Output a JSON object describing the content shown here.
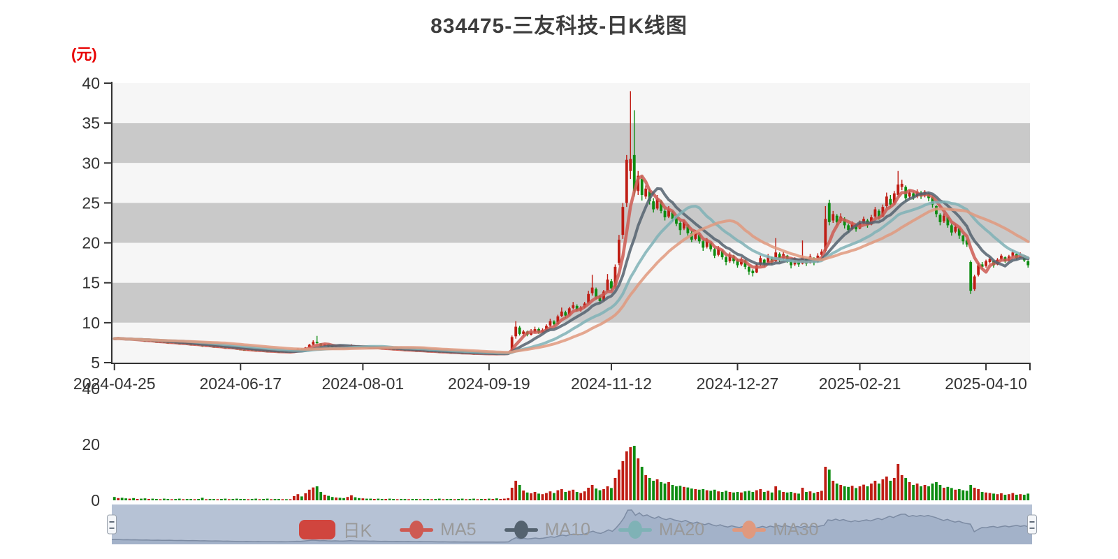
{
  "title": "834475-三友科技-日K线图",
  "y_axis": {
    "unit": "(元)",
    "ticks": [
      40,
      35,
      30,
      25,
      20,
      15,
      10,
      5
    ]
  },
  "volume_axis": {
    "ticks": [
      40,
      20,
      0
    ]
  },
  "x_axis": {
    "labels": [
      "2024-04-25",
      "2024-06-17",
      "2024-08-01",
      "2024-09-19",
      "2024-11-12",
      "2024-12-27",
      "2025-02-21",
      "2025-04-10"
    ],
    "tick_indices": [
      0,
      33,
      65,
      98,
      130,
      163,
      195,
      228
    ]
  },
  "legend": {
    "items": [
      {
        "name": "kline",
        "label": "日K",
        "type": "bar",
        "color": "#d0453e"
      },
      {
        "name": "ma5",
        "label": "MA5",
        "type": "line",
        "color": "#ce5a52"
      },
      {
        "name": "ma10",
        "label": "MA10",
        "type": "line",
        "color": "#54626f"
      },
      {
        "name": "ma20",
        "label": "MA20",
        "type": "line",
        "color": "#7fb2b6"
      },
      {
        "name": "ma30",
        "label": "MA30",
        "type": "line",
        "color": "#e0997e"
      }
    ]
  },
  "colors": {
    "up": "#bf1d14",
    "down": "#0d8c11",
    "stripe_light": "#f6f6f6",
    "stripe_dark": "#c9c9c9",
    "axis": "#333333",
    "label": "#333333",
    "legend_text": "#999999",
    "unit_label": "#e80000",
    "title_text": "#3d3d3d",
    "nav_bg": "#b6c2d5",
    "nav_area": "#a3b2c9",
    "nav_line": "#7c8ba3",
    "nav_handle_fill": "#f4f6f9",
    "nav_handle_stroke": "#98a0ab",
    "nav_handle_grip": "#55606e"
  },
  "chart_data": {
    "type": "candlestick",
    "title": "834475-三友科技-日K线图",
    "ylabel": "(元)",
    "price_range": [
      5,
      40
    ],
    "volume_range": [
      0,
      40
    ],
    "grid": "horizontal-bands",
    "legend_position": "bottom-center",
    "moving_average_windows": [
      5,
      10,
      20,
      30
    ],
    "ohlc_format": [
      "open",
      "close",
      "low",
      "high"
    ],
    "candles": [
      [
        8.1,
        8.0,
        7.94,
        8.16
      ],
      [
        8.0,
        8.06
      ],
      [
        8.05,
        7.95
      ],
      [
        7.95,
        7.86
      ],
      [
        7.86,
        7.93
      ],
      [
        7.91,
        7.81
      ],
      [
        7.81,
        7.87
      ],
      [
        7.85,
        7.75
      ],
      [
        7.74,
        7.66
      ],
      [
        7.67,
        7.73
      ],
      [
        7.72,
        7.62
      ],
      [
        7.62,
        7.55
      ],
      [
        7.56,
        7.62
      ],
      [
        7.6,
        7.5
      ],
      [
        7.5,
        7.44
      ],
      [
        7.45,
        7.52
      ],
      [
        7.5,
        7.4
      ],
      [
        7.4,
        7.32
      ],
      [
        7.33,
        7.4
      ],
      [
        7.38,
        7.28
      ],
      [
        7.28,
        7.2
      ],
      [
        7.21,
        7.28
      ],
      [
        7.26,
        7.16
      ],
      [
        7.15,
        7.05,
        6.98,
        7.18
      ],
      [
        7.06,
        7.12
      ],
      [
        7.1,
        7.0
      ],
      [
        7.0,
        6.92
      ],
      [
        6.93,
        7.0
      ],
      [
        6.98,
        6.88
      ],
      [
        6.88,
        6.8,
        6.74,
        6.92
      ],
      [
        6.81,
        6.87
      ],
      [
        6.85,
        6.75
      ],
      [
        6.74,
        6.66
      ],
      [
        6.66,
        6.6
      ],
      [
        6.6,
        6.55
      ],
      [
        6.56,
        6.62
      ],
      [
        6.6,
        6.52
      ],
      [
        6.52,
        6.45,
        6.4,
        6.55
      ],
      [
        6.46,
        6.52
      ],
      [
        6.5,
        6.42
      ],
      [
        6.42,
        6.36,
        6.3,
        6.45
      ],
      [
        6.37,
        6.44
      ],
      [
        6.42,
        6.35
      ],
      [
        6.35,
        6.3,
        6.25,
        6.38
      ],
      [
        6.31,
        6.38
      ],
      [
        6.36,
        6.3
      ],
      [
        6.31,
        6.36
      ],
      [
        6.37,
        6.55,
        6.35,
        6.6
      ],
      [
        6.56,
        6.75,
        6.52,
        6.8
      ],
      [
        6.73,
        6.65
      ],
      [
        6.66,
        6.9,
        6.62,
        6.95
      ],
      [
        6.92,
        7.25,
        6.9,
        7.35
      ],
      [
        7.25,
        7.6,
        7.2,
        7.8
      ],
      [
        7.6,
        7.45,
        7.35,
        8.35
      ],
      [
        7.4,
        7.1,
        7.0,
        7.45
      ],
      [
        7.12,
        7.3
      ],
      [
        7.28,
        7.05,
        6.98,
        7.32
      ],
      [
        7.05,
        6.95
      ],
      [
        6.95,
        7.05
      ],
      [
        7.04,
        6.92
      ],
      [
        6.92,
        6.85
      ],
      [
        6.86,
        7.0,
        6.84,
        7.06
      ],
      [
        7.0,
        7.15,
        6.98,
        7.3
      ],
      [
        7.12,
        7.0
      ],
      [
        7.0,
        6.9
      ],
      [
        6.91,
        6.97
      ],
      [
        6.95,
        6.88
      ],
      [
        6.88,
        6.8
      ],
      [
        6.81,
        6.86
      ],
      [
        6.85,
        6.77
      ],
      [
        6.77,
        6.7
      ],
      [
        6.71,
        6.76
      ],
      [
        6.75,
        6.68
      ],
      [
        6.67,
        6.6
      ],
      [
        6.61,
        6.66
      ],
      [
        6.65,
        6.58
      ],
      [
        6.58,
        6.52
      ],
      [
        6.53,
        6.58
      ],
      [
        6.56,
        6.5
      ],
      [
        6.5,
        6.44
      ],
      [
        6.45,
        6.5
      ],
      [
        6.48,
        6.42
      ],
      [
        6.42,
        6.36
      ],
      [
        6.37,
        6.42
      ],
      [
        6.4,
        6.34
      ],
      [
        6.34,
        6.28,
        6.22,
        6.38
      ],
      [
        6.29,
        6.34
      ],
      [
        6.33,
        6.27
      ],
      [
        6.27,
        6.22
      ],
      [
        6.23,
        6.28
      ],
      [
        6.26,
        6.2
      ],
      [
        6.2,
        6.15,
        6.1,
        6.24
      ],
      [
        6.16,
        6.21
      ],
      [
        6.2,
        6.14
      ],
      [
        6.14,
        6.1,
        6.04,
        6.18
      ],
      [
        6.11,
        6.16
      ],
      [
        6.15,
        6.1
      ],
      [
        6.1,
        6.15
      ],
      [
        6.14,
        6.08
      ],
      [
        6.08,
        6.13
      ],
      [
        6.12,
        6.06,
        6.0,
        6.15
      ],
      [
        6.07,
        6.12
      ],
      [
        6.11,
        6.16
      ],
      [
        6.15,
        6.24,
        6.12,
        6.3
      ],
      [
        6.3,
        8.2,
        6.25,
        8.4
      ],
      [
        8.3,
        9.5,
        8.0,
        10.2
      ],
      [
        9.4,
        8.6,
        8.4,
        9.6
      ],
      [
        8.6,
        8.9,
        8.3,
        9.1
      ],
      [
        8.9,
        8.5,
        8.3,
        9.0
      ],
      [
        8.5,
        8.8,
        8.4,
        9.2
      ],
      [
        8.85,
        9.2,
        8.7,
        9.5
      ],
      [
        9.2,
        8.8,
        8.6,
        9.4
      ],
      [
        8.85,
        9.1,
        8.7,
        9.3
      ],
      [
        9.1,
        9.6,
        9.0,
        9.8
      ],
      [
        9.65,
        10.2,
        9.5,
        10.5
      ],
      [
        10.15,
        9.8,
        9.6,
        10.3
      ],
      [
        9.85,
        10.8,
        9.8,
        11.0
      ],
      [
        10.85,
        11.4,
        10.7,
        11.9
      ],
      [
        11.3,
        10.9,
        10.6,
        11.5
      ],
      [
        11.0,
        11.8,
        10.9,
        12.0
      ],
      [
        11.85,
        12.2,
        11.7,
        12.6
      ],
      [
        12.1,
        11.6,
        11.4,
        12.3
      ],
      [
        11.65,
        11.9,
        11.4,
        12.1
      ],
      [
        11.95,
        12.4,
        11.8,
        12.6
      ],
      [
        12.5,
        13.6,
        12.4,
        14.0
      ],
      [
        13.7,
        14.4,
        13.4,
        16.0
      ],
      [
        14.2,
        13.2,
        12.9,
        14.4
      ],
      [
        13.3,
        12.7,
        12.4,
        13.5
      ],
      [
        12.8,
        13.9,
        12.7,
        14.1
      ],
      [
        14.0,
        15.4,
        13.9,
        16.1
      ],
      [
        15.2,
        14.3,
        14.0,
        15.5
      ],
      [
        14.5,
        17.0,
        14.3,
        17.3
      ],
      [
        17.5,
        20.4,
        17.2,
        21.0
      ],
      [
        21.0,
        24.5,
        20.5,
        25.0
      ],
      [
        25.0,
        30.4,
        24.5,
        31.0
      ],
      [
        29.0,
        30.5,
        28.0,
        39.0
      ],
      [
        31.0,
        26.5,
        25.8,
        36.6
      ],
      [
        26.5,
        28.4,
        26.0,
        29.0
      ],
      [
        28.0,
        26.0,
        25.3,
        28.4
      ],
      [
        25.8,
        26.8,
        25.5,
        27.2
      ],
      [
        26.5,
        25.2,
        24.8,
        26.8
      ],
      [
        25.2,
        24.2,
        23.8,
        25.6
      ],
      [
        24.3,
        25.5,
        24.1,
        26.0
      ],
      [
        25.2,
        24.0,
        23.7,
        25.4
      ],
      [
        24.0,
        23.2,
        22.8,
        24.3
      ],
      [
        23.3,
        24.2,
        23.1,
        24.6
      ],
      [
        23.8,
        23.0,
        22.7,
        24.0
      ],
      [
        23.2,
        22.4,
        22.1,
        23.4
      ],
      [
        22.5,
        21.6,
        21.0,
        22.7
      ],
      [
        21.8,
        22.6,
        21.6,
        22.9
      ],
      [
        22.3,
        21.2,
        20.9,
        22.4
      ],
      [
        21.2,
        20.4,
        20.1,
        21.5
      ],
      [
        20.5,
        21.3,
        20.3,
        21.6
      ],
      [
        21.0,
        20.2,
        19.9,
        21.1
      ],
      [
        20.2,
        19.4,
        19.0,
        20.4
      ],
      [
        19.5,
        20.3,
        19.3,
        20.6
      ],
      [
        20.0,
        19.2,
        18.9,
        20.1
      ],
      [
        19.2,
        18.4,
        18.1,
        19.4
      ],
      [
        18.5,
        19.3,
        18.3,
        19.6
      ],
      [
        19.0,
        18.2,
        17.9,
        19.1
      ],
      [
        18.2,
        17.6,
        17.2,
        18.4
      ],
      [
        17.7,
        18.5,
        17.5,
        18.8
      ],
      [
        18.3,
        17.7,
        17.4,
        18.5
      ],
      [
        17.8,
        17.2,
        16.9,
        18.0
      ],
      [
        17.3,
        18.0,
        17.1,
        18.2
      ],
      [
        17.8,
        17.0,
        16.7,
        17.9
      ],
      [
        17.0,
        16.4,
        16.0,
        17.1
      ],
      [
        16.5,
        16.2,
        15.8,
        16.7
      ],
      [
        16.3,
        17.2,
        16.2,
        17.4
      ],
      [
        17.3,
        18.1,
        17.1,
        18.4
      ],
      [
        17.9,
        17.3,
        17.0,
        18.0
      ],
      [
        17.4,
        18.3,
        17.3,
        18.6
      ],
      [
        18.2,
        17.6,
        17.3,
        18.3
      ],
      [
        17.7,
        18.8,
        17.6,
        20.6
      ],
      [
        18.6,
        17.9,
        17.6,
        18.8
      ],
      [
        18.0,
        18.6,
        17.8,
        18.9
      ],
      [
        18.4,
        17.8,
        17.5,
        18.5
      ],
      [
        17.8,
        17.2,
        16.8,
        17.9
      ],
      [
        17.3,
        18.0,
        17.1,
        18.2
      ],
      [
        17.9,
        17.3,
        17.0,
        18.0
      ],
      [
        17.4,
        18.2,
        17.3,
        20.3
      ],
      [
        18.0,
        17.4,
        17.1,
        18.1
      ],
      [
        17.5,
        18.3,
        17.4,
        18.6
      ],
      [
        18.1,
        17.5,
        17.2,
        18.2
      ],
      [
        17.6,
        18.4,
        17.5,
        18.7
      ],
      [
        18.5,
        18.9,
        18.3,
        19.2
      ],
      [
        19.0,
        23.0,
        18.8,
        24.6
      ],
      [
        25.0,
        22.6,
        22.2,
        25.4
      ],
      [
        22.8,
        23.6,
        22.5,
        24.0
      ],
      [
        23.4,
        22.6,
        22.2,
        23.6
      ],
      [
        22.7,
        23.3,
        22.5,
        23.7
      ],
      [
        23.0,
        22.2,
        21.8,
        23.2
      ],
      [
        22.2,
        21.6,
        21.3,
        22.4
      ],
      [
        21.7,
        22.4,
        21.6,
        22.7
      ],
      [
        22.2,
        21.7,
        21.4,
        22.3
      ],
      [
        21.8,
        22.5,
        21.7,
        22.8
      ],
      [
        22.5,
        23.0,
        22.3,
        23.3
      ],
      [
        22.8,
        22.2,
        21.9,
        23.0
      ],
      [
        22.3,
        23.2,
        22.2,
        23.5
      ],
      [
        23.3,
        24.2,
        23.1,
        24.5
      ],
      [
        24.0,
        23.2,
        22.9,
        24.2
      ],
      [
        23.3,
        24.5,
        23.2,
        24.8
      ],
      [
        24.6,
        25.8,
        24.4,
        26.3
      ],
      [
        25.5,
        24.8,
        24.5,
        26.0
      ],
      [
        25.0,
        26.2,
        24.8,
        26.5
      ],
      [
        26.0,
        27.3,
        25.8,
        29.0
      ],
      [
        27.0,
        27.4,
        26.6,
        27.9
      ],
      [
        27.0,
        25.6,
        25.2,
        27.2
      ],
      [
        25.8,
        26.3,
        25.5,
        26.6
      ],
      [
        26.2,
        25.7,
        25.4,
        26.4
      ],
      [
        25.8,
        26.4,
        25.6,
        26.7
      ],
      [
        26.3,
        25.8,
        25.5,
        26.5
      ],
      [
        25.9,
        26.4,
        25.7,
        26.6
      ],
      [
        26.2,
        25.6,
        25.2,
        26.3
      ],
      [
        25.7,
        24.8,
        24.4,
        25.8
      ],
      [
        24.6,
        23.6,
        23.2,
        24.7
      ],
      [
        23.5,
        22.6,
        22.2,
        23.7
      ],
      [
        22.7,
        23.4,
        22.5,
        23.7
      ],
      [
        23.2,
        22.2,
        21.9,
        23.3
      ],
      [
        22.2,
        21.3,
        20.9,
        22.4
      ],
      [
        21.4,
        22.0,
        21.2,
        22.3
      ],
      [
        21.8,
        20.9,
        20.5,
        21.9
      ],
      [
        20.9,
        20.2,
        19.8,
        21.0
      ],
      [
        20.3,
        19.8,
        19.5,
        20.5
      ],
      [
        17.6,
        14.0,
        13.6,
        17.8
      ],
      [
        14.2,
        15.8,
        14.0,
        16.0
      ],
      [
        16.0,
        17.2,
        15.8,
        17.5
      ],
      [
        17.3,
        17.0,
        16.7,
        17.6
      ],
      [
        17.1,
        17.7,
        16.9,
        17.9
      ],
      [
        17.6,
        18.0,
        17.4,
        18.2
      ],
      [
        17.7,
        17.2,
        16.9,
        17.8
      ],
      [
        17.3,
        17.9,
        17.2,
        18.1
      ],
      [
        18.0,
        18.4,
        17.8,
        18.6
      ],
      [
        18.2,
        17.7,
        17.5,
        18.3
      ],
      [
        17.8,
        18.3,
        17.7,
        18.5
      ],
      [
        18.4,
        18.8,
        18.2,
        19.1
      ],
      [
        18.6,
        18.1,
        17.9,
        18.7
      ],
      [
        18.2,
        18.6,
        18.1,
        18.8
      ],
      [
        18.4,
        17.8,
        17.6,
        18.5
      ],
      [
        17.7,
        17.2,
        16.9,
        17.8
      ]
    ],
    "volumes": [
      1.2,
      0.8,
      0.9,
      0.7,
      0.6,
      0.8,
      0.5,
      0.6,
      0.7,
      0.5,
      0.6,
      0.5,
      0.4,
      0.6,
      0.5,
      0.4,
      0.5,
      0.6,
      0.4,
      0.5,
      0.5,
      0.4,
      0.5,
      0.9,
      0.4,
      0.5,
      0.5,
      0.4,
      0.5,
      0.6,
      0.4,
      0.5,
      0.6,
      0.5,
      0.5,
      0.4,
      0.5,
      0.6,
      0.4,
      0.5,
      0.6,
      0.4,
      0.5,
      0.5,
      0.4,
      0.4,
      0.4,
      1.5,
      2.2,
      1.4,
      2.5,
      3.8,
      4.6,
      5.0,
      3.0,
      2.0,
      1.6,
      1.2,
      1.0,
      0.9,
      0.8,
      1.2,
      1.8,
      1.1,
      0.8,
      0.7,
      0.6,
      0.6,
      0.5,
      0.6,
      0.5,
      0.5,
      0.6,
      0.5,
      0.4,
      0.5,
      0.5,
      0.4,
      0.5,
      0.5,
      0.4,
      0.5,
      0.5,
      0.4,
      0.5,
      0.6,
      0.4,
      0.5,
      0.5,
      0.4,
      0.5,
      0.6,
      0.4,
      0.5,
      0.6,
      0.4,
      0.5,
      0.5,
      0.6,
      0.5,
      0.7,
      0.5,
      0.6,
      0.8,
      4.5,
      7.0,
      5.5,
      3.5,
      2.8,
      2.5,
      3.0,
      2.4,
      2.2,
      2.6,
      3.2,
      2.6,
      3.6,
      4.0,
      3.0,
      3.4,
      3.8,
      3.0,
      2.6,
      3.2,
      4.5,
      5.5,
      4.2,
      3.6,
      4.0,
      5.0,
      4.4,
      8.0,
      11.0,
      14.0,
      17.5,
      19.0,
      19.5,
      15.0,
      12.0,
      9.0,
      8.0,
      7.0,
      7.5,
      6.5,
      6.0,
      6.5,
      5.5,
      5.0,
      5.2,
      4.8,
      4.6,
      4.2,
      4.0,
      3.8,
      4.0,
      3.6,
      3.4,
      3.8,
      3.2,
      3.0,
      3.4,
      3.0,
      2.8,
      3.0,
      2.8,
      3.2,
      3.4,
      3.0,
      3.6,
      4.0,
      3.0,
      3.4,
      2.8,
      5.0,
      3.6,
      3.0,
      2.8,
      3.0,
      2.6,
      2.4,
      4.5,
      3.0,
      3.2,
      2.6,
      3.0,
      3.4,
      12.0,
      11.0,
      7.0,
      6.0,
      5.5,
      5.0,
      4.8,
      5.2,
      4.4,
      5.0,
      5.6,
      5.0,
      6.0,
      7.0,
      6.0,
      7.5,
      8.5,
      7.0,
      8.0,
      13.0,
      9.0,
      8.0,
      6.5,
      5.5,
      6.0,
      5.0,
      5.5,
      5.0,
      6.0,
      6.5,
      5.5,
      4.5,
      4.8,
      4.4,
      3.8,
      4.0,
      3.6,
      3.4,
      5.5,
      4.5,
      4.0,
      3.0,
      2.8,
      2.6,
      2.4,
      2.2,
      2.5,
      2.0,
      2.2,
      2.6,
      2.0,
      2.2,
      2.0,
      2.4
    ]
  }
}
